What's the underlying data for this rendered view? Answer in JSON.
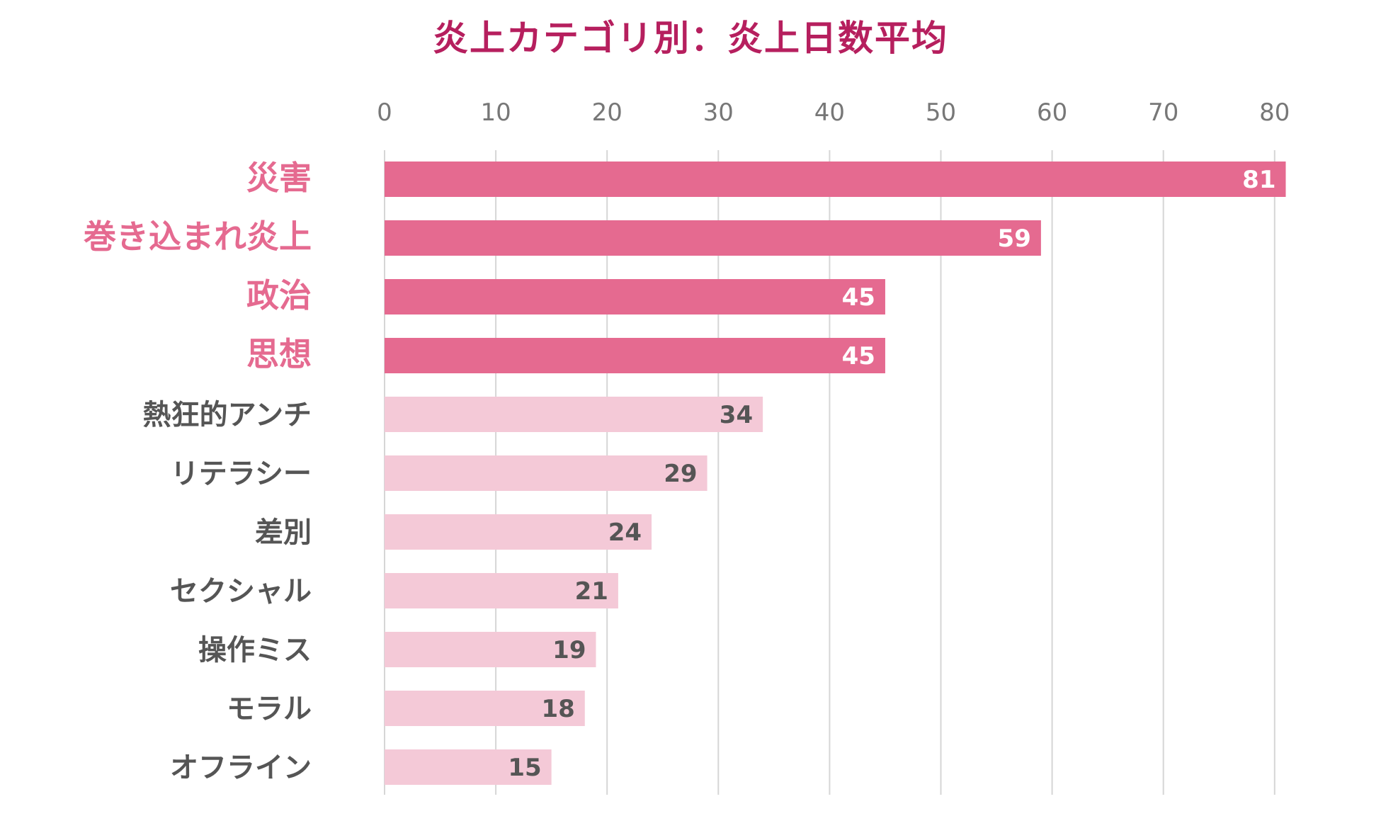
{
  "chart_data": {
    "type": "bar",
    "orientation": "horizontal",
    "title": "炎上カテゴリ別：炎上日数平均",
    "xlabel": "",
    "ylabel": "",
    "xlim": [
      0,
      80
    ],
    "x_ticks": [
      "0",
      "10",
      "20",
      "30",
      "40",
      "50",
      "60",
      "70",
      "80"
    ],
    "grid": true,
    "categories": [
      "災害",
      "巻き込まれ炎上",
      "政治",
      "思想",
      "熱狂的アンチ",
      "リテラシー",
      "差別",
      "セクシャル",
      "操作ミス",
      "モラル",
      "オフライン"
    ],
    "values": [
      81,
      59,
      45,
      45,
      34,
      29,
      24,
      21,
      19,
      18,
      15
    ],
    "highlighted": [
      true,
      true,
      true,
      true,
      false,
      false,
      false,
      false,
      false,
      false,
      false
    ]
  },
  "colors": {
    "title": "#b61f5e",
    "highlight_bar": "#e56a90",
    "normal_bar": "#f4c9d7",
    "highlight_label": "#e56a90",
    "normal_label": "#555555",
    "highlight_value": "#ffffff",
    "normal_value": "#555555",
    "tick_label": "#777777",
    "grid": "#d6d6d6"
  }
}
